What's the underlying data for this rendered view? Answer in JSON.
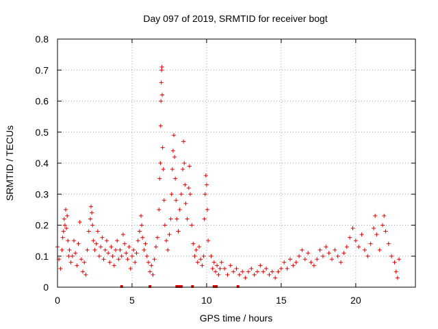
{
  "chart_data": {
    "type": "scatter",
    "title": "Day 097 of 2019, SRMTID for receiver bogt",
    "xlabel": "GPS time / hours",
    "ylabel": "SRMTID / TECUs",
    "xlim": [
      0,
      24
    ],
    "ylim": [
      0,
      0.8
    ],
    "xticks": [
      0,
      5,
      10,
      15,
      20
    ],
    "xtick_labels": [
      "0",
      "5",
      "10",
      "15",
      "20"
    ],
    "yticks": [
      0,
      0.1,
      0.2,
      0.3,
      0.4,
      0.5,
      0.6,
      0.7,
      0.8
    ],
    "ytick_labels": [
      "0",
      "0.1",
      "0.2",
      "0.3",
      "0.4",
      "0.5",
      "0.6",
      "0.7",
      "0.8"
    ],
    "grid": true,
    "marker": "+",
    "color": "#e00000",
    "series": [
      {
        "name": "SRMTID",
        "points": [
          [
            0.0,
            0.13
          ],
          [
            0.1,
            0.09
          ],
          [
            0.2,
            0.06
          ],
          [
            0.3,
            0.12
          ],
          [
            0.35,
            0.16
          ],
          [
            0.4,
            0.18
          ],
          [
            0.45,
            0.22
          ],
          [
            0.5,
            0.2
          ],
          [
            0.55,
            0.25
          ],
          [
            0.6,
            0.19
          ],
          [
            0.65,
            0.23
          ],
          [
            0.7,
            0.15
          ],
          [
            0.75,
            0.1
          ],
          [
            0.8,
            0.12
          ],
          [
            0.9,
            0.08
          ],
          [
            1.0,
            0.1
          ],
          [
            1.1,
            0.15
          ],
          [
            1.2,
            0.11
          ],
          [
            1.3,
            0.07
          ],
          [
            1.4,
            0.14
          ],
          [
            1.5,
            0.21
          ],
          [
            1.6,
            0.09
          ],
          [
            1.7,
            0.05
          ],
          [
            1.8,
            0.08
          ],
          [
            1.9,
            0.04
          ],
          [
            2.0,
            0.12
          ],
          [
            2.1,
            0.18
          ],
          [
            2.2,
            0.22
          ],
          [
            2.25,
            0.26
          ],
          [
            2.3,
            0.24
          ],
          [
            2.35,
            0.2
          ],
          [
            2.4,
            0.15
          ],
          [
            2.5,
            0.12
          ],
          [
            2.6,
            0.14
          ],
          [
            2.7,
            0.18
          ],
          [
            2.8,
            0.1
          ],
          [
            2.9,
            0.13
          ],
          [
            3.0,
            0.16
          ],
          [
            3.1,
            0.09
          ],
          [
            3.2,
            0.12
          ],
          [
            3.3,
            0.15
          ],
          [
            3.4,
            0.11
          ],
          [
            3.5,
            0.08
          ],
          [
            3.6,
            0.13
          ],
          [
            3.7,
            0.1
          ],
          [
            3.8,
            0.07
          ],
          [
            3.9,
            0.12
          ],
          [
            4.0,
            0.15
          ],
          [
            4.1,
            0.09
          ],
          [
            4.2,
            0.12
          ],
          [
            4.3,
            0.1
          ],
          [
            4.4,
            0.17
          ],
          [
            4.5,
            0.14
          ],
          [
            4.6,
            0.11
          ],
          [
            4.7,
            0.09
          ],
          [
            4.8,
            0.13
          ],
          [
            4.9,
            0.06
          ],
          [
            5.0,
            0.1
          ],
          [
            5.1,
            0.12
          ],
          [
            5.2,
            0.08
          ],
          [
            5.3,
            0.11
          ],
          [
            5.4,
            0.15
          ],
          [
            5.5,
            0.18
          ],
          [
            5.6,
            0.23
          ],
          [
            5.65,
            0.2
          ],
          [
            5.7,
            0.16
          ],
          [
            5.8,
            0.12
          ],
          [
            5.9,
            0.14
          ],
          [
            6.0,
            0.1
          ],
          [
            6.1,
            0.08
          ],
          [
            6.2,
            0.05
          ],
          [
            6.3,
            0.07
          ],
          [
            6.4,
            0.04
          ],
          [
            6.5,
            0.09
          ],
          [
            6.6,
            0.13
          ],
          [
            6.7,
            0.16
          ],
          [
            6.8,
            0.25
          ],
          [
            6.85,
            0.35
          ],
          [
            6.9,
            0.4
          ],
          [
            6.92,
            0.52
          ],
          [
            6.94,
            0.6
          ],
          [
            6.96,
            0.66
          ],
          [
            6.98,
            0.7
          ],
          [
            7.0,
            0.71
          ],
          [
            7.02,
            0.62
          ],
          [
            7.05,
            0.45
          ],
          [
            7.1,
            0.38
          ],
          [
            7.15,
            0.28
          ],
          [
            7.2,
            0.2
          ],
          [
            7.3,
            0.15
          ],
          [
            7.4,
            0.12
          ],
          [
            7.5,
            0.17
          ],
          [
            7.6,
            0.22
          ],
          [
            7.65,
            0.3
          ],
          [
            7.7,
            0.38
          ],
          [
            7.75,
            0.44
          ],
          [
            7.8,
            0.49
          ],
          [
            7.85,
            0.42
          ],
          [
            7.9,
            0.35
          ],
          [
            7.95,
            0.28
          ],
          [
            8.0,
            0.22
          ],
          [
            8.1,
            0.18
          ],
          [
            8.2,
            0.25
          ],
          [
            8.3,
            0.3
          ],
          [
            8.4,
            0.38
          ],
          [
            8.45,
            0.47
          ],
          [
            8.5,
            0.4
          ],
          [
            8.55,
            0.33
          ],
          [
            8.6,
            0.27
          ],
          [
            8.7,
            0.22
          ],
          [
            8.8,
            0.32
          ],
          [
            8.85,
            0.39
          ],
          [
            8.9,
            0.3
          ],
          [
            9.0,
            0.2
          ],
          [
            9.1,
            0.14
          ],
          [
            9.2,
            0.1
          ],
          [
            9.3,
            0.12
          ],
          [
            9.4,
            0.08
          ],
          [
            9.5,
            0.13
          ],
          [
            9.6,
            0.09
          ],
          [
            9.7,
            0.07
          ],
          [
            9.8,
            0.1
          ],
          [
            9.85,
            0.22
          ],
          [
            9.9,
            0.3
          ],
          [
            9.95,
            0.36
          ],
          [
            10.0,
            0.33
          ],
          [
            10.05,
            0.25
          ],
          [
            10.1,
            0.15
          ],
          [
            10.3,
            0.1
          ],
          [
            10.4,
            0.06
          ],
          [
            10.5,
            0.08
          ],
          [
            10.6,
            0.05
          ],
          [
            10.7,
            0.07
          ],
          [
            10.8,
            0.04
          ],
          [
            10.9,
            0.06
          ],
          [
            11.0,
            0.08
          ],
          [
            11.2,
            0.06
          ],
          [
            11.4,
            0.04
          ],
          [
            11.6,
            0.07
          ],
          [
            11.8,
            0.05
          ],
          [
            12.0,
            0.06
          ],
          [
            12.2,
            0.04
          ],
          [
            12.4,
            0.05
          ],
          [
            12.6,
            0.03
          ],
          [
            12.8,
            0.05
          ],
          [
            13.0,
            0.06
          ],
          [
            13.2,
            0.04
          ],
          [
            13.4,
            0.05
          ],
          [
            13.6,
            0.07
          ],
          [
            13.8,
            0.05
          ],
          [
            14.0,
            0.06
          ],
          [
            14.2,
            0.04
          ],
          [
            14.4,
            0.05
          ],
          [
            14.6,
            0.03
          ],
          [
            14.8,
            0.05
          ],
          [
            15.0,
            0.06
          ],
          [
            15.2,
            0.08
          ],
          [
            15.4,
            0.06
          ],
          [
            15.6,
            0.09
          ],
          [
            15.8,
            0.07
          ],
          [
            16.0,
            0.08
          ],
          [
            16.2,
            0.1
          ],
          [
            16.4,
            0.12
          ],
          [
            16.6,
            0.09
          ],
          [
            16.8,
            0.11
          ],
          [
            17.0,
            0.08
          ],
          [
            17.2,
            0.07
          ],
          [
            17.4,
            0.09
          ],
          [
            17.6,
            0.12
          ],
          [
            17.8,
            0.1
          ],
          [
            18.0,
            0.13
          ],
          [
            18.2,
            0.11
          ],
          [
            18.4,
            0.09
          ],
          [
            18.6,
            0.12
          ],
          [
            18.8,
            0.1
          ],
          [
            19.0,
            0.08
          ],
          [
            19.2,
            0.11
          ],
          [
            19.4,
            0.13
          ],
          [
            19.6,
            0.16
          ],
          [
            19.8,
            0.19
          ],
          [
            20.0,
            0.15
          ],
          [
            20.2,
            0.13
          ],
          [
            20.4,
            0.17
          ],
          [
            20.6,
            0.12
          ],
          [
            20.8,
            0.1
          ],
          [
            21.0,
            0.14
          ],
          [
            21.2,
            0.19
          ],
          [
            21.3,
            0.23
          ],
          [
            21.4,
            0.17
          ],
          [
            21.6,
            0.12
          ],
          [
            21.8,
            0.2
          ],
          [
            21.9,
            0.23
          ],
          [
            22.0,
            0.18
          ],
          [
            22.2,
            0.14
          ],
          [
            22.4,
            0.1
          ],
          [
            22.6,
            0.08
          ],
          [
            22.7,
            0.05
          ],
          [
            22.8,
            0.03
          ],
          [
            22.9,
            0.09
          ]
        ]
      }
    ],
    "zero_points": [
      4.3,
      6.2,
      8.0,
      8.15,
      8.3,
      9.05,
      10.5,
      10.65,
      12.1
    ]
  }
}
